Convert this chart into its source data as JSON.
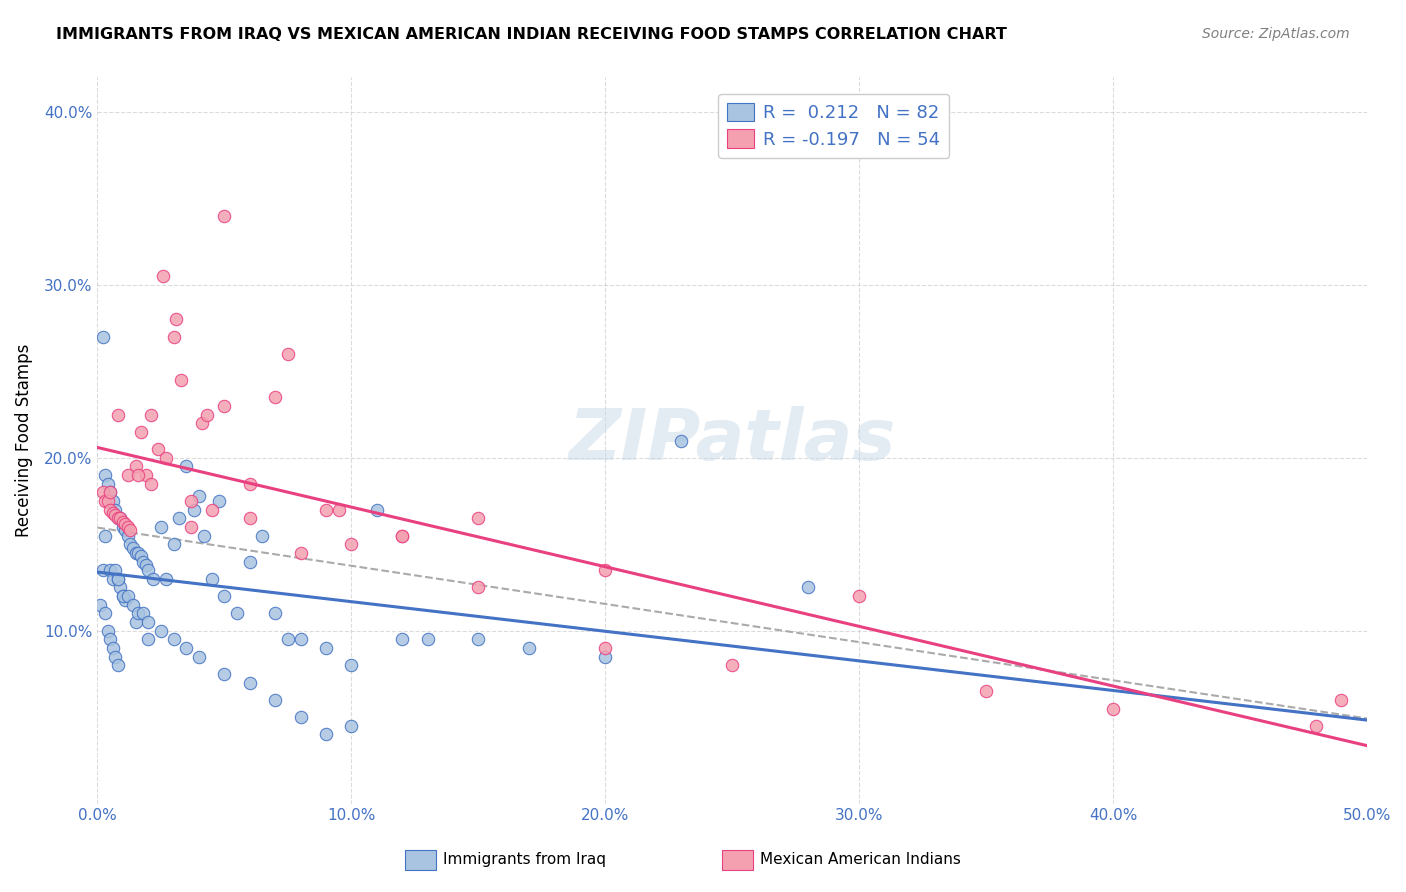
{
  "title": "IMMIGRANTS FROM IRAQ VS MEXICAN AMERICAN INDIAN RECEIVING FOOD STAMPS CORRELATION CHART",
  "source": "Source: ZipAtlas.com",
  "ylabel": "Receiving Food Stamps",
  "x_min": 0.0,
  "x_max": 0.5,
  "y_min": 0.0,
  "y_max": 0.42,
  "x_ticks": [
    0.0,
    0.1,
    0.2,
    0.3,
    0.4,
    0.5
  ],
  "x_tick_labels": [
    "0.0%",
    "10.0%",
    "20.0%",
    "30.0%",
    "40.0%",
    "50.0%"
  ],
  "y_ticks": [
    0.1,
    0.2,
    0.3,
    0.4
  ],
  "y_tick_labels": [
    "10.0%",
    "20.0%",
    "30.0%",
    "40.0%"
  ],
  "watermark": "ZIPatlas",
  "color_iraq": "#a8c4e0",
  "color_mex": "#f4a0b0",
  "line_iraq": "#4472c4",
  "line_mex": "#e84080",
  "line_trend_color": "#aaaaaa",
  "background_color": "#ffffff",
  "grid_color": "#cccccc",
  "iraq_x": [
    0.001,
    0.002,
    0.002,
    0.003,
    0.003,
    0.003,
    0.004,
    0.004,
    0.005,
    0.005,
    0.005,
    0.006,
    0.006,
    0.006,
    0.007,
    0.007,
    0.007,
    0.008,
    0.008,
    0.008,
    0.009,
    0.009,
    0.01,
    0.01,
    0.011,
    0.011,
    0.012,
    0.013,
    0.014,
    0.015,
    0.015,
    0.016,
    0.017,
    0.018,
    0.019,
    0.02,
    0.02,
    0.022,
    0.025,
    0.027,
    0.03,
    0.032,
    0.035,
    0.038,
    0.04,
    0.042,
    0.045,
    0.048,
    0.05,
    0.055,
    0.06,
    0.065,
    0.07,
    0.075,
    0.08,
    0.09,
    0.1,
    0.11,
    0.12,
    0.13,
    0.15,
    0.17,
    0.2,
    0.23,
    0.28,
    0.008,
    0.01,
    0.012,
    0.014,
    0.016,
    0.018,
    0.02,
    0.025,
    0.03,
    0.035,
    0.04,
    0.05,
    0.06,
    0.07,
    0.08,
    0.09,
    0.1
  ],
  "iraq_y": [
    0.115,
    0.27,
    0.135,
    0.19,
    0.155,
    0.11,
    0.185,
    0.1,
    0.18,
    0.135,
    0.095,
    0.175,
    0.13,
    0.09,
    0.17,
    0.135,
    0.085,
    0.165,
    0.13,
    0.08,
    0.165,
    0.125,
    0.16,
    0.12,
    0.158,
    0.118,
    0.155,
    0.15,
    0.148,
    0.145,
    0.105,
    0.145,
    0.143,
    0.14,
    0.138,
    0.135,
    0.095,
    0.13,
    0.16,
    0.13,
    0.15,
    0.165,
    0.195,
    0.17,
    0.178,
    0.155,
    0.13,
    0.175,
    0.12,
    0.11,
    0.14,
    0.155,
    0.11,
    0.095,
    0.095,
    0.09,
    0.08,
    0.17,
    0.095,
    0.095,
    0.095,
    0.09,
    0.085,
    0.21,
    0.125,
    0.13,
    0.12,
    0.12,
    0.115,
    0.11,
    0.11,
    0.105,
    0.1,
    0.095,
    0.09,
    0.085,
    0.075,
    0.07,
    0.06,
    0.05,
    0.04,
    0.045
  ],
  "mex_x": [
    0.002,
    0.003,
    0.004,
    0.005,
    0.006,
    0.007,
    0.008,
    0.009,
    0.01,
    0.011,
    0.012,
    0.013,
    0.015,
    0.017,
    0.019,
    0.021,
    0.024,
    0.027,
    0.03,
    0.033,
    0.037,
    0.041,
    0.045,
    0.05,
    0.06,
    0.07,
    0.08,
    0.09,
    0.1,
    0.12,
    0.15,
    0.2,
    0.3,
    0.4,
    0.005,
    0.008,
    0.012,
    0.016,
    0.021,
    0.026,
    0.031,
    0.037,
    0.043,
    0.05,
    0.06,
    0.075,
    0.095,
    0.12,
    0.15,
    0.2,
    0.25,
    0.35,
    0.48,
    0.49
  ],
  "mex_y": [
    0.18,
    0.175,
    0.175,
    0.17,
    0.168,
    0.167,
    0.165,
    0.165,
    0.163,
    0.162,
    0.16,
    0.158,
    0.195,
    0.215,
    0.19,
    0.185,
    0.205,
    0.2,
    0.27,
    0.245,
    0.175,
    0.22,
    0.17,
    0.23,
    0.185,
    0.235,
    0.145,
    0.17,
    0.15,
    0.155,
    0.165,
    0.135,
    0.12,
    0.055,
    0.18,
    0.225,
    0.19,
    0.19,
    0.225,
    0.305,
    0.28,
    0.16,
    0.225,
    0.34,
    0.165,
    0.26,
    0.17,
    0.155,
    0.125,
    0.09,
    0.08,
    0.065,
    0.045,
    0.06
  ]
}
